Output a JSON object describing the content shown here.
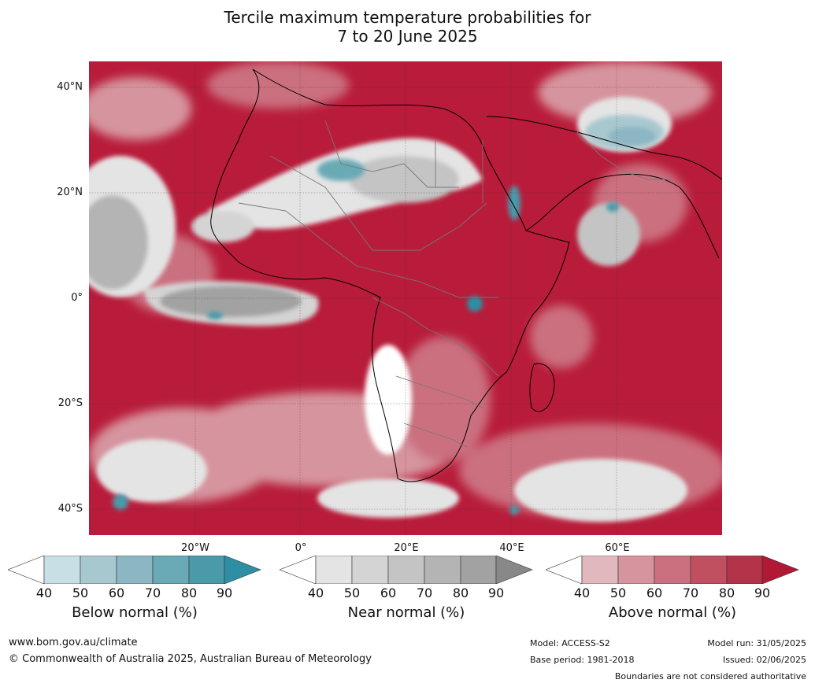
{
  "title": {
    "line1": "Tercile maximum temperature probabilities for",
    "line2": "7 to 20 June 2025"
  },
  "map": {
    "lat_labels": [
      "40°N",
      "20°N",
      "0°",
      "20°S",
      "40°S"
    ],
    "lon_labels": [
      "20°W",
      "0°",
      "20°E",
      "40°E",
      "60°E"
    ]
  },
  "legend": {
    "below": {
      "label": "Below normal (%)",
      "ticks": [
        "40",
        "50",
        "60",
        "70",
        "80",
        "90"
      ],
      "colors": [
        "#ffffff",
        "#c8dfe6",
        "#a8c8d0",
        "#8bb6c2",
        "#6aaab6",
        "#4a9aaa",
        "#2e8ea3"
      ]
    },
    "near": {
      "label": "Near normal (%)",
      "ticks": [
        "40",
        "50",
        "60",
        "70",
        "80",
        "90"
      ],
      "colors": [
        "#ffffff",
        "#e4e4e4",
        "#d4d4d4",
        "#c4c4c4",
        "#b4b4b4",
        "#a2a2a2",
        "#888888"
      ]
    },
    "above": {
      "label": "Above normal (%)",
      "ticks": [
        "40",
        "50",
        "60",
        "70",
        "80",
        "90"
      ],
      "colors": [
        "#ffffff",
        "#e0b8be",
        "#d6949e",
        "#cb707f",
        "#c0505f",
        "#b53348",
        "#b01834"
      ]
    }
  },
  "footer": {
    "website": "www.bom.gov.au/climate",
    "copyright": "© Commonwealth of Australia 2025, Australian Bureau of Meteorology",
    "model": "Model: ACCESS-S2",
    "base_period": "Base period: 1981-2018",
    "model_run": "Model run: 31/05/2025",
    "issued": "Issued: 02/06/2025",
    "disclaimer": "Boundaries are not considered authoritative"
  }
}
